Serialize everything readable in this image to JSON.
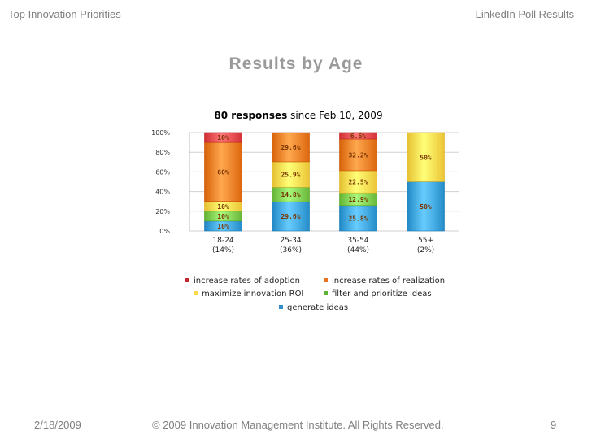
{
  "header": {
    "left": "Top Innovation Priorities",
    "right": "LinkedIn Poll Results"
  },
  "slide_title": "Results by Age",
  "footer": {
    "date": "2/18/2009",
    "copyright": "© 2009 Innovation Management Institute. All Rights Reserved.",
    "page": "9"
  },
  "chart_data": {
    "type": "bar",
    "stacked": true,
    "title_bold": "80 responses",
    "title_rest": " since Feb 10, 2009",
    "categories": [
      "18-24",
      "25-34",
      "35-54",
      "55+"
    ],
    "category_sublabels": [
      "(14%)",
      "(36%)",
      "(44%)",
      "(2%)"
    ],
    "ylim": [
      0,
      100
    ],
    "yticks": [
      "0%",
      "20%",
      "40%",
      "60%",
      "80%",
      "100%"
    ],
    "grid": true,
    "legend_position": "bottom",
    "series": [
      {
        "name": "generate ideas",
        "color": "#3aa0dd",
        "values": [
          10,
          29.6,
          25.8,
          50
        ],
        "labels": [
          "10%",
          "29.6%",
          "25.8%",
          "50%"
        ]
      },
      {
        "name": "filter and prioritize ideas",
        "color": "#7ccb4e",
        "values": [
          10,
          14.8,
          12.9,
          0
        ],
        "labels": [
          "10%",
          "14.8%",
          "12.9%",
          ""
        ]
      },
      {
        "name": "maximize innovation ROI",
        "color": "#ffd84a",
        "values": [
          10,
          25.9,
          22.5,
          50
        ],
        "labels": [
          "10%",
          "25.9%",
          "22.5%",
          "50%"
        ]
      },
      {
        "name": "increase rates of realization",
        "color": "#f07b22",
        "values": [
          60,
          29.6,
          32.2,
          0
        ],
        "labels": [
          "60%",
          "29.6%",
          "32.2%",
          ""
        ]
      },
      {
        "name": "increase rates of adoption",
        "color": "#e8474c",
        "values": [
          10,
          0,
          6.6,
          0
        ],
        "labels": [
          "10%",
          "",
          "6.6%",
          ""
        ]
      }
    ],
    "legend": [
      {
        "name": "increase rates of adoption",
        "color": "#c0282d"
      },
      {
        "name": "increase rates of realization",
        "color": "#e8731c"
      },
      {
        "name": "maximize innovation ROI",
        "color": "#ffd84a"
      },
      {
        "name": "filter and prioritize ideas",
        "color": "#5bb233"
      },
      {
        "name": "generate ideas",
        "color": "#2e8fd0"
      }
    ]
  }
}
